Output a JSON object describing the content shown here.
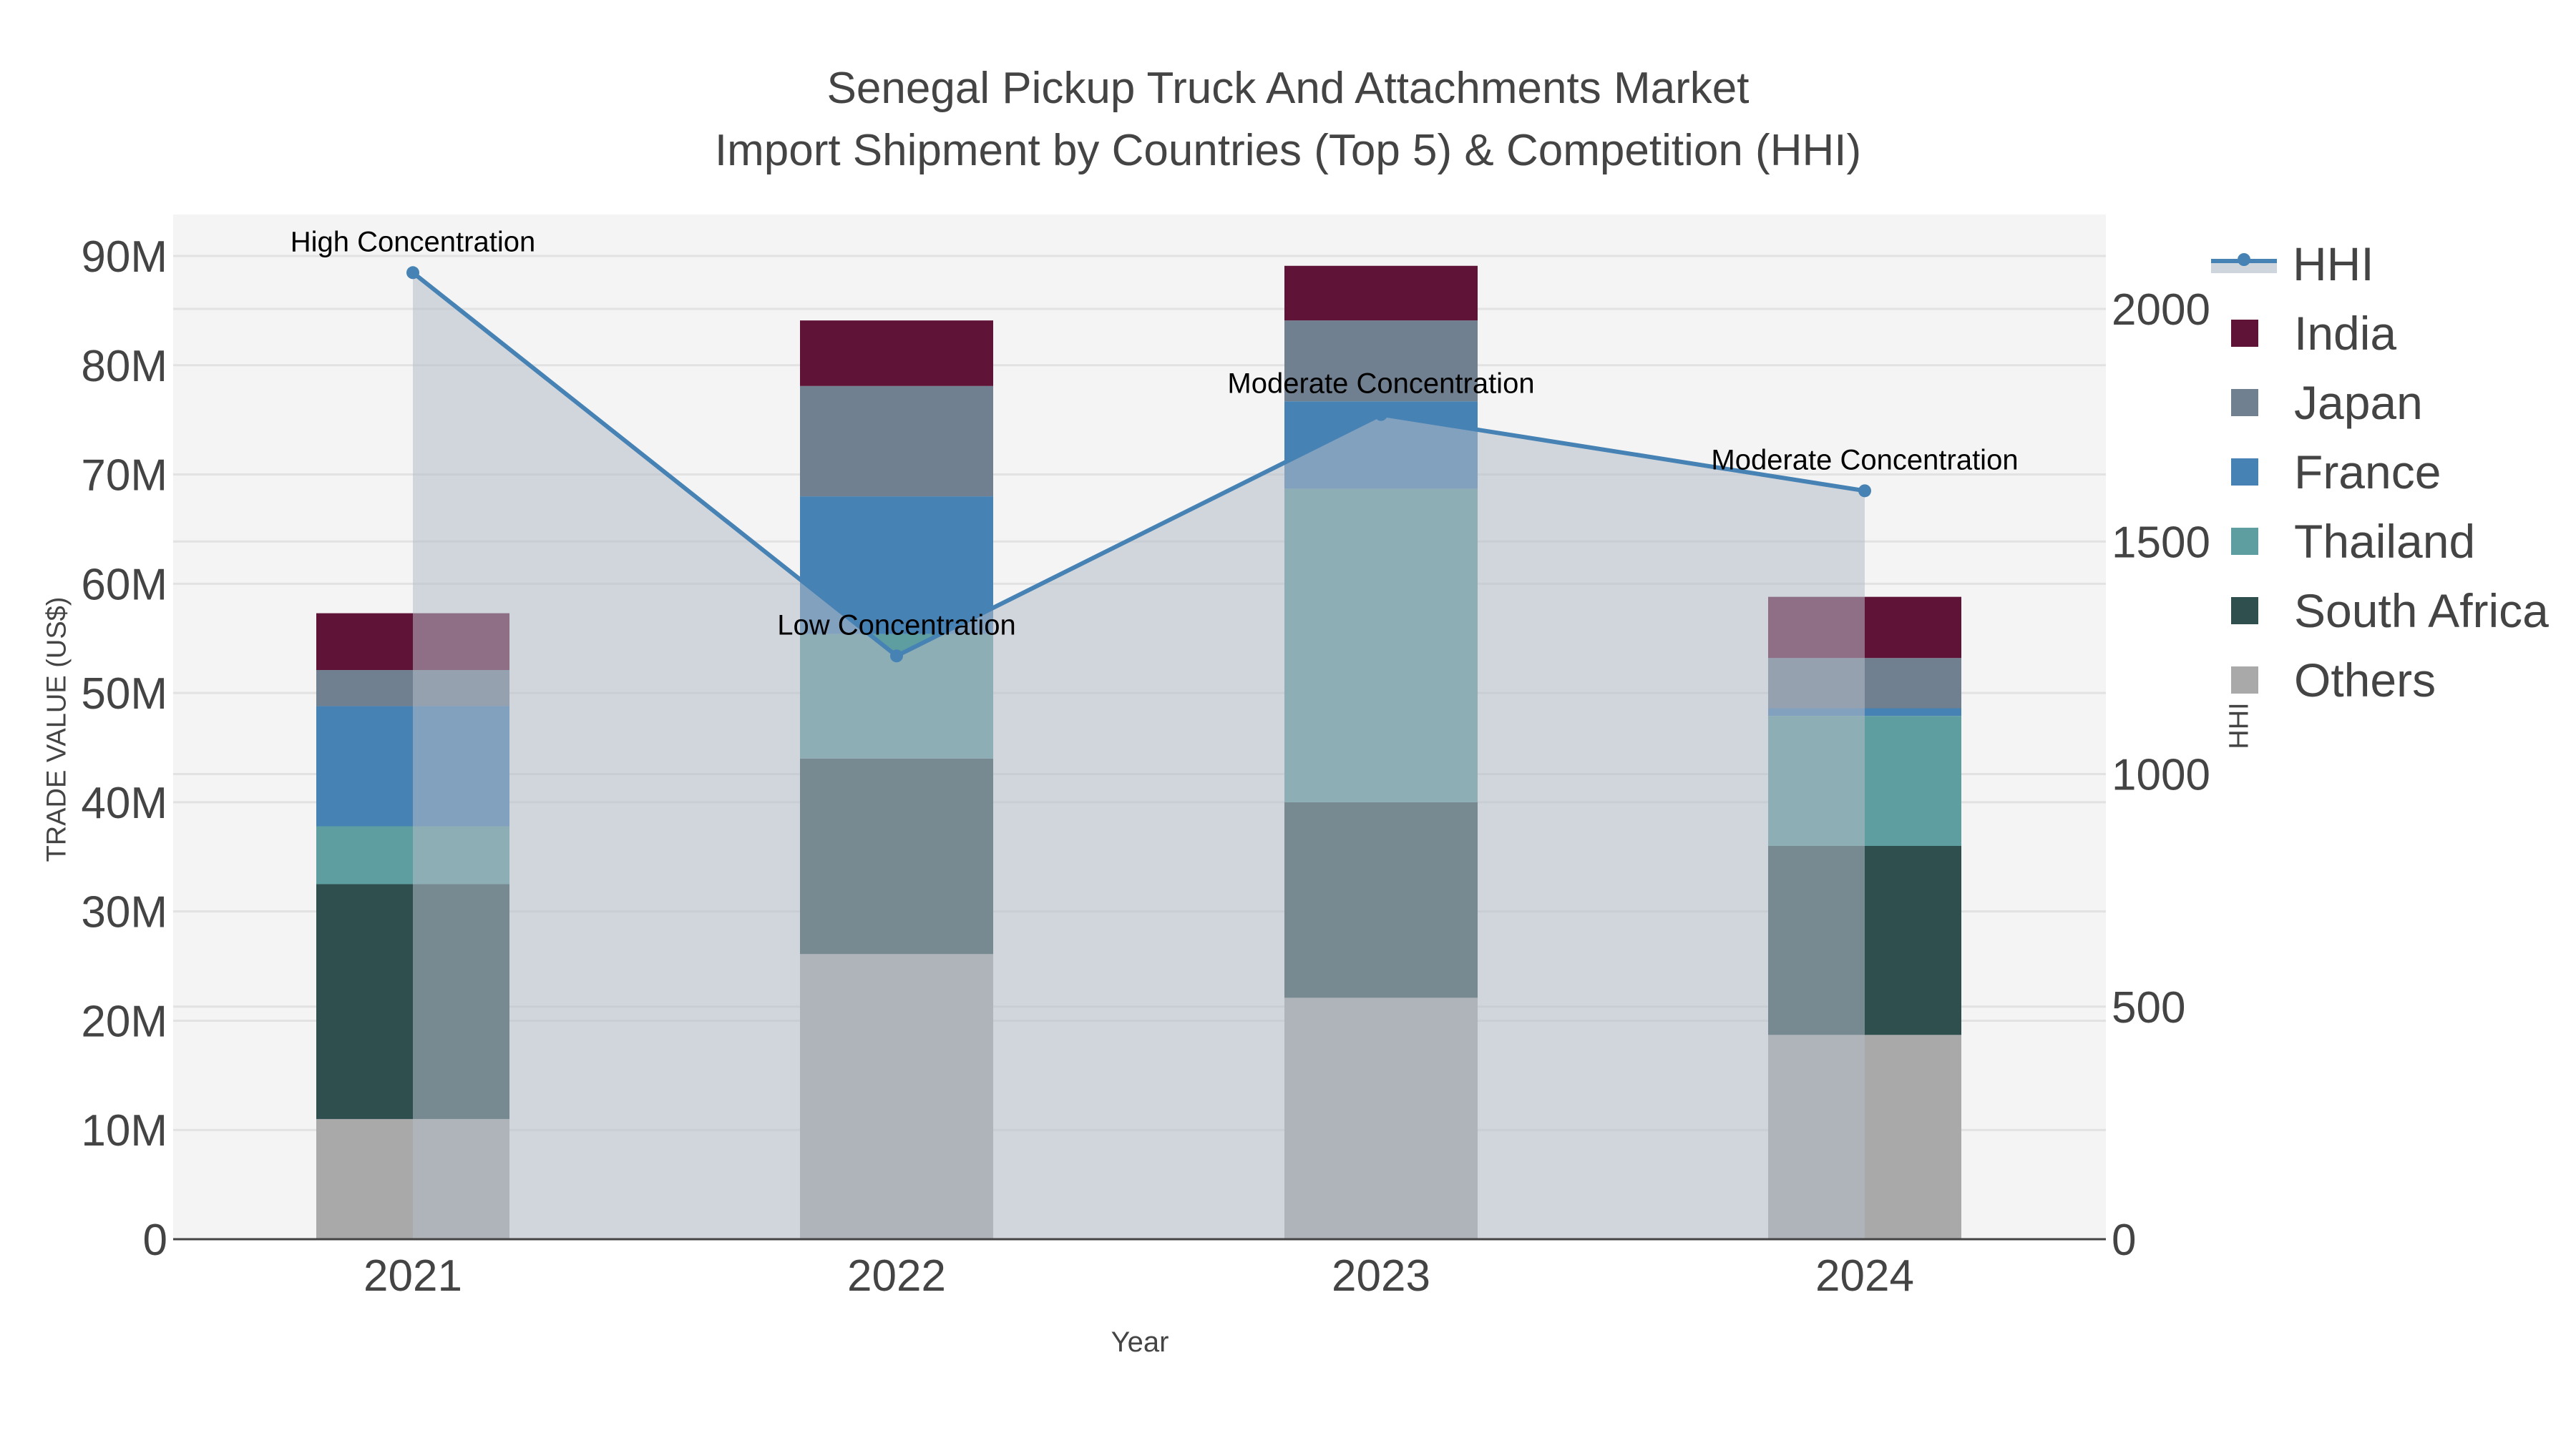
{
  "title": {
    "line1": "Senegal Pickup Truck And Attachments Market",
    "line2": "Import Shipment by Countries (Top 5) & Competition (HHI)"
  },
  "axes": {
    "x_title": "Year",
    "y_title": "TRADE VALUE (US$)",
    "y2_title": "HHI",
    "y_ticks": [
      "0",
      "10M",
      "20M",
      "30M",
      "40M",
      "50M",
      "60M",
      "70M",
      "80M",
      "90M"
    ],
    "y2_ticks": [
      "0",
      "500",
      "1000",
      "1500",
      "2000"
    ]
  },
  "legend": {
    "items": [
      {
        "label": "HHI",
        "color": "#4682b4",
        "type": "line"
      },
      {
        "label": "India",
        "color": "#5f1336",
        "type": "bar"
      },
      {
        "label": "Japan",
        "color": "#708090",
        "type": "bar"
      },
      {
        "label": "France",
        "color": "#4682b4",
        "type": "bar"
      },
      {
        "label": "Thailand",
        "color": "#5f9ea0",
        "type": "bar"
      },
      {
        "label": "South Africa",
        "color": "#2f4f4f",
        "type": "bar"
      },
      {
        "label": "Others",
        "color": "#a9a9a9",
        "type": "bar"
      }
    ]
  },
  "chart_data": {
    "type": "bar",
    "title": "Senegal Pickup Truck And Attachments Market — Import Shipment by Countries (Top 5) & Competition (HHI)",
    "xlabel": "Year",
    "ylabel": "TRADE VALUE (US$)",
    "y2label": "HHI",
    "ylim": [
      0,
      94000000
    ],
    "y2lim": [
      0,
      2200
    ],
    "categories": [
      "2021",
      "2022",
      "2023",
      "2024"
    ],
    "stacked": true,
    "series": [
      {
        "name": "Others",
        "color": "#a9a9a9",
        "values": [
          11000000,
          26100000,
          22100000,
          18700000
        ]
      },
      {
        "name": "South Africa",
        "color": "#2f4f4f",
        "values": [
          21500000,
          17900000,
          17900000,
          17300000
        ]
      },
      {
        "name": "Thailand",
        "color": "#5f9ea0",
        "values": [
          5300000,
          11400000,
          28700000,
          11900000
        ]
      },
      {
        "name": "France",
        "color": "#4682b4",
        "values": [
          11000000,
          12600000,
          8000000,
          700000
        ]
      },
      {
        "name": "Japan",
        "color": "#708090",
        "values": [
          3300000,
          10100000,
          7400000,
          4600000
        ]
      },
      {
        "name": "India",
        "color": "#5f1336",
        "values": [
          5200000,
          6000000,
          5000000,
          5600000
        ]
      }
    ],
    "line_series": {
      "name": "HHI",
      "axis": "y2",
      "color": "#4682b4",
      "fill": "tozeroy",
      "values": [
        2078,
        1254,
        1773,
        1609
      ],
      "annotations": [
        "High Concentration",
        "Low Concentration",
        "Moderate Concentration",
        "Moderate Concentration"
      ]
    },
    "grid": true,
    "legend_position": "right"
  }
}
